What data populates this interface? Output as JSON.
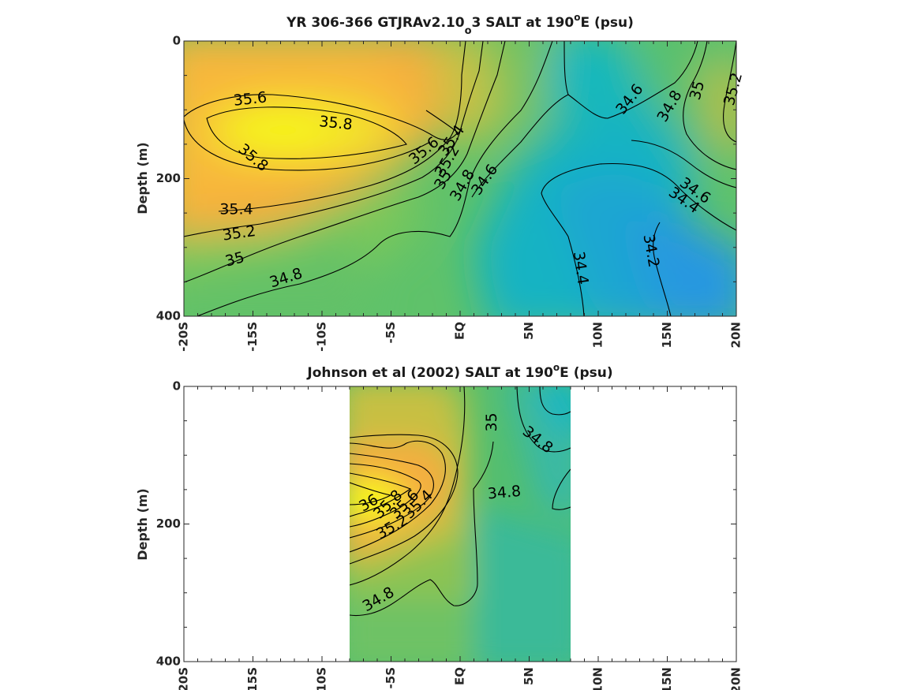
{
  "chart_data": [
    {
      "type": "heatmap",
      "subtype": "filled-contour",
      "title_parts": [
        "YR 306-366 GTJRAv2.10",
        "o",
        "3 SALT at 190",
        "o",
        "E (psu)"
      ],
      "xlabel": "",
      "ylabel": "Depth (m)",
      "xlim": [
        -20,
        20
      ],
      "ylim": [
        0,
        400
      ],
      "y_reversed": true,
      "x_ticks": [
        -20,
        -15,
        -10,
        -5,
        0,
        5,
        10,
        15,
        20
      ],
      "x_tick_labels": [
        "-20S",
        "-15S",
        "-10S",
        "-5S",
        "EQ",
        "5N",
        "10N",
        "15N",
        "20N"
      ],
      "y_ticks": [
        0,
        200,
        400
      ],
      "y_tick_labels": [
        "0",
        "200",
        "400"
      ],
      "colormap": "parula",
      "color_range": [
        34.0,
        36.0
      ],
      "data_x_range": [
        -20,
        20
      ],
      "contour_labels": [
        {
          "text": "35.6",
          "x": -15.2,
          "y": 85,
          "angle": -6
        },
        {
          "text": "35.8",
          "x": -9.0,
          "y": 120,
          "angle": 6
        },
        {
          "text": "35.8",
          "x": -15.0,
          "y": 170,
          "angle": 40
        },
        {
          "text": "35.6",
          "x": -2.6,
          "y": 160,
          "angle": -40
        },
        {
          "text": "35.4",
          "x": -0.6,
          "y": 145,
          "angle": -55
        },
        {
          "text": "35.2",
          "x": -0.9,
          "y": 175,
          "angle": -60
        },
        {
          "text": "35",
          "x": -1.2,
          "y": 202,
          "angle": -60
        },
        {
          "text": "34.8",
          "x": 0.2,
          "y": 210,
          "angle": -60
        },
        {
          "text": "34.6",
          "x": 1.8,
          "y": 202,
          "angle": -55
        },
        {
          "text": "35.4",
          "x": -16.2,
          "y": 245,
          "angle": 0
        },
        {
          "text": "35.2",
          "x": -16.0,
          "y": 280,
          "angle": -8
        },
        {
          "text": "35",
          "x": -16.3,
          "y": 318,
          "angle": -15
        },
        {
          "text": "34.8",
          "x": -12.6,
          "y": 345,
          "angle": -18
        },
        {
          "text": "34.6",
          "x": 12.3,
          "y": 85,
          "angle": -52
        },
        {
          "text": "34.8",
          "x": 15.2,
          "y": 95,
          "angle": -60
        },
        {
          "text": "35",
          "x": 17.2,
          "y": 72,
          "angle": -75
        },
        {
          "text": "35.2",
          "x": 19.8,
          "y": 70,
          "angle": -75
        },
        {
          "text": "34.6",
          "x": 17.0,
          "y": 218,
          "angle": 35
        },
        {
          "text": "34.4",
          "x": 16.2,
          "y": 232,
          "angle": 35
        },
        {
          "text": "34.4",
          "x": 8.7,
          "y": 330,
          "angle": 82
        },
        {
          "text": "34.2",
          "x": 13.8,
          "y": 305,
          "angle": 80
        }
      ]
    },
    {
      "type": "heatmap",
      "subtype": "filled-contour",
      "title_parts": [
        "Johnson et al (2002) SALT at 190",
        "o",
        "E (psu)"
      ],
      "xlabel": "",
      "ylabel": "Depth (m)",
      "xlim": [
        -20,
        20
      ],
      "ylim": [
        0,
        400
      ],
      "y_reversed": true,
      "x_ticks": [
        -20,
        -15,
        -10,
        -5,
        0,
        5,
        10,
        15,
        20
      ],
      "x_tick_labels": [
        "-20S",
        "-15S",
        "-10S",
        "-5S",
        "EQ",
        "5N",
        "10N",
        "15N",
        "20N"
      ],
      "y_ticks": [
        0,
        200,
        400
      ],
      "y_tick_labels": [
        "0",
        "200",
        "400"
      ],
      "colormap": "parula",
      "color_range": [
        34.0,
        36.0
      ],
      "data_x_range": [
        -8,
        8
      ],
      "contour_labels": [
        {
          "text": "35",
          "x": 2.3,
          "y": 52,
          "angle": -90
        },
        {
          "text": "34.8",
          "x": 5.6,
          "y": 78,
          "angle": 38
        },
        {
          "text": "34.8",
          "x": 3.2,
          "y": 155,
          "angle": -5
        },
        {
          "text": "36",
          "x": -6.6,
          "y": 170,
          "angle": -30
        },
        {
          "text": "35.8",
          "x": -5.2,
          "y": 172,
          "angle": -45
        },
        {
          "text": "35.6",
          "x": -4.0,
          "y": 172,
          "angle": -45
        },
        {
          "text": "35.4",
          "x": -3.0,
          "y": 172,
          "angle": -45
        },
        {
          "text": "35.2",
          "x": -4.9,
          "y": 205,
          "angle": -30
        },
        {
          "text": "34.8",
          "x": -5.9,
          "y": 310,
          "angle": -30
        }
      ]
    }
  ]
}
